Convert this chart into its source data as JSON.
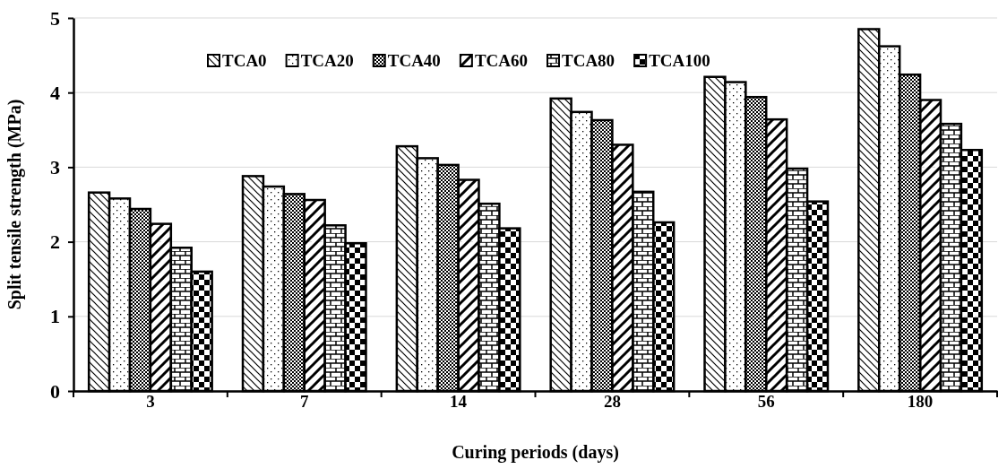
{
  "chart_data": {
    "type": "bar",
    "xlabel": "Curing periods (days)",
    "ylabel": "Split tensile strength (MPa)",
    "categories": [
      "3",
      "7",
      "14",
      "28",
      "56",
      "180"
    ],
    "series": [
      {
        "name": "TCA0",
        "color": "#000000",
        "values": [
          2.66,
          2.88,
          3.28,
          3.92,
          4.21,
          4.85
        ]
      },
      {
        "name": "TCA20",
        "color": "#000000",
        "values": [
          2.58,
          2.74,
          3.12,
          3.74,
          4.14,
          4.62
        ]
      },
      {
        "name": "TCA40",
        "color": "#000000",
        "values": [
          2.44,
          2.64,
          3.03,
          3.63,
          3.94,
          4.24
        ]
      },
      {
        "name": "TCA60",
        "color": "#000000",
        "values": [
          2.24,
          2.56,
          2.83,
          3.3,
          3.64,
          3.9
        ]
      },
      {
        "name": "TCA80",
        "color": "#000000",
        "values": [
          1.92,
          2.22,
          2.51,
          2.67,
          2.98,
          3.58
        ]
      },
      {
        "name": "TCA100",
        "color": "#000000",
        "values": [
          1.6,
          1.98,
          2.18,
          2.26,
          2.54,
          3.23
        ]
      }
    ],
    "ylim": [
      0,
      5
    ],
    "yticks": [
      0,
      1,
      2,
      3,
      4,
      5
    ],
    "grid": "y",
    "legend": "top"
  }
}
